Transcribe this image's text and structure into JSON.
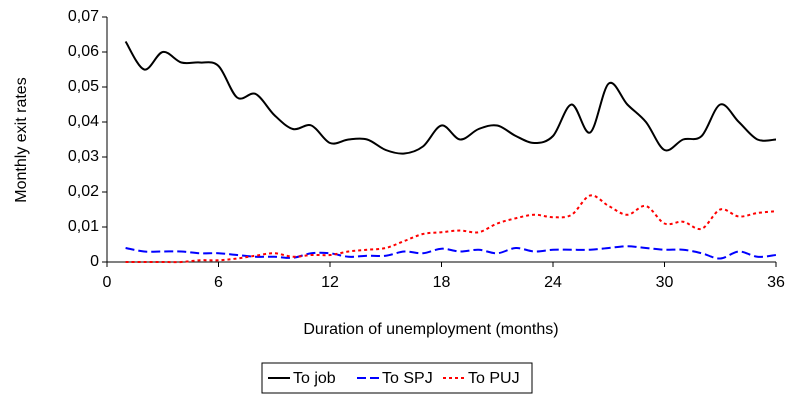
{
  "chart_data": {
    "type": "line",
    "x_label": "Duration of unemployment (months)",
    "y_label": "Monthly exit rates",
    "x": [
      1,
      2,
      3,
      4,
      5,
      6,
      7,
      8,
      9,
      10,
      11,
      12,
      13,
      14,
      15,
      16,
      17,
      18,
      19,
      20,
      21,
      22,
      23,
      24,
      25,
      26,
      27,
      28,
      29,
      30,
      31,
      32,
      33,
      34,
      35,
      36
    ],
    "series": [
      {
        "name": "To job",
        "color": "#000000",
        "line_style": "solid",
        "values": [
          0.063,
          0.055,
          0.06,
          0.057,
          0.057,
          0.056,
          0.047,
          0.048,
          0.042,
          0.038,
          0.039,
          0.034,
          0.035,
          0.035,
          0.032,
          0.031,
          0.033,
          0.039,
          0.035,
          0.038,
          0.039,
          0.036,
          0.034,
          0.036,
          0.045,
          0.037,
          0.051,
          0.045,
          0.04,
          0.032,
          0.035,
          0.036,
          0.045,
          0.04,
          0.035,
          0.035
        ]
      },
      {
        "name": "To SPJ",
        "color": "#0000ff",
        "line_style": "dashed",
        "values": [
          0.004,
          0.003,
          0.003,
          0.003,
          0.0025,
          0.0025,
          0.002,
          0.0015,
          0.0015,
          0.0012,
          0.0025,
          0.0025,
          0.0015,
          0.0018,
          0.0018,
          0.003,
          0.0025,
          0.0038,
          0.003,
          0.0035,
          0.0025,
          0.004,
          0.003,
          0.0035,
          0.0035,
          0.0035,
          0.004,
          0.0045,
          0.004,
          0.0035,
          0.0035,
          0.0025,
          0.001,
          0.003,
          0.0015,
          0.002
        ]
      },
      {
        "name": "To PUJ",
        "color": "#ff0000",
        "line_style": "dotted",
        "values": [
          0,
          0,
          0,
          0,
          0.0005,
          0.0005,
          0.001,
          0.0018,
          0.0025,
          0.0015,
          0.002,
          0.002,
          0.003,
          0.0035,
          0.004,
          0.006,
          0.008,
          0.0085,
          0.009,
          0.0085,
          0.011,
          0.0125,
          0.0135,
          0.0128,
          0.0135,
          0.019,
          0.016,
          0.0135,
          0.016,
          0.011,
          0.0115,
          0.0095,
          0.015,
          0.013,
          0.014,
          0.0145
        ]
      }
    ],
    "xlim": [
      0,
      36
    ],
    "xticks": [
      0,
      6,
      12,
      18,
      24,
      30,
      36
    ],
    "ylim": [
      0,
      0.07
    ],
    "yticks": [
      0,
      {
        "value": 0.01,
        "label": "0,01"
      },
      {
        "value": 0.02,
        "label": "0,02"
      },
      {
        "value": 0.03,
        "label": "0,03"
      },
      {
        "value": 0.04,
        "label": "0,04"
      },
      {
        "value": 0.05,
        "label": "0,05"
      },
      {
        "value": 0.06,
        "label": "0,06"
      },
      {
        "value": 0.07,
        "label": "0,07"
      }
    ],
    "grid": false,
    "legend": "bottom"
  }
}
